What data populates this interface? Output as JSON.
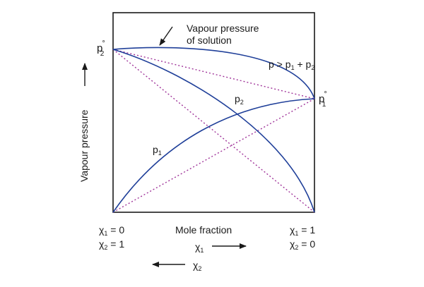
{
  "diagram": {
    "title": "",
    "y_axis_label": "Vapour pressure",
    "x_axis_label": "Mole fraction",
    "curve_label": {
      "line1": "Vapour pressure",
      "line2": "of solution"
    },
    "inequality": {
      "p": "p",
      "gt": " > ",
      "p1": "p",
      "p1_sub": "1",
      "plus": " + ",
      "p2": "p",
      "p2_sub": "2"
    },
    "p2_zero": {
      "main": "p",
      "sup": "°",
      "sub": "2"
    },
    "p1_zero": {
      "main": "p",
      "sup": "°",
      "sub": "1"
    },
    "p1_curve": {
      "main": "p",
      "sub": "1"
    },
    "p2_curve": {
      "main": "p",
      "sub": "2"
    },
    "left_composition": {
      "x1": {
        "chi": "χ",
        "sub": "1",
        "rest": " = 0"
      },
      "x2": {
        "chi": "χ",
        "sub": "2",
        "rest": " = 1"
      }
    },
    "right_composition": {
      "x1": {
        "chi": "χ",
        "sub": "1",
        "rest": " = 1"
      },
      "x2": {
        "chi": "χ",
        "sub": "2",
        "rest": " = 0"
      }
    },
    "arrow_x1": {
      "chi": "χ",
      "sub": "1"
    },
    "arrow_x2": {
      "chi": "χ",
      "sub": "2"
    },
    "colors": {
      "curve": "#1f3f99",
      "ideal_line": "#a0359a",
      "frame": "#1a1a1a"
    }
  }
}
